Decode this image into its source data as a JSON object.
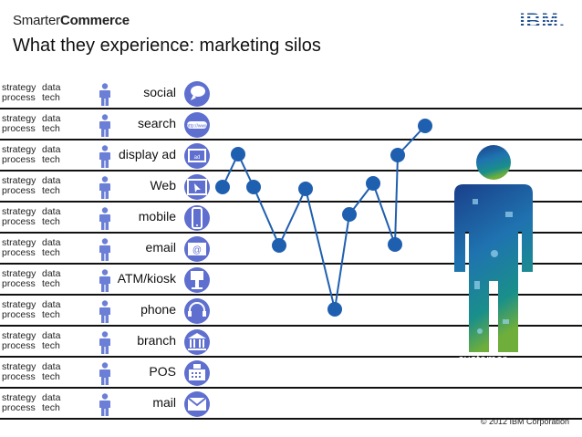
{
  "header": {
    "brand_part1": "Smarter",
    "brand_part2": "Commerce",
    "logo": "IBM.",
    "title": "What they experience: marketing silos"
  },
  "row_labels": {
    "strategy": "strategy",
    "data": "data",
    "process": "process",
    "tech": "tech"
  },
  "channels": [
    {
      "label": "social",
      "icon": "speech-bubbles-icon"
    },
    {
      "label": "search",
      "icon": "search-url-icon"
    },
    {
      "label": "display ad",
      "icon": "display-ad-icon"
    },
    {
      "label": "Web",
      "icon": "cursor-window-icon"
    },
    {
      "label": "mobile",
      "icon": "mobile-phone-icon"
    },
    {
      "label": "email",
      "icon": "email-icon"
    },
    {
      "label": "ATM/kiosk",
      "icon": "kiosk-icon"
    },
    {
      "label": "phone",
      "icon": "headset-icon"
    },
    {
      "label": "branch",
      "icon": "bank-icon"
    },
    {
      "label": "POS",
      "icon": "cash-register-icon"
    },
    {
      "label": "mail",
      "icon": "envelope-icon"
    }
  ],
  "customer_label": "customer",
  "copyright": "© 2012 IBM Corporation",
  "colors": {
    "accent": "#6b7fd7",
    "journey": "#1f5fb0",
    "line": "#111111"
  }
}
